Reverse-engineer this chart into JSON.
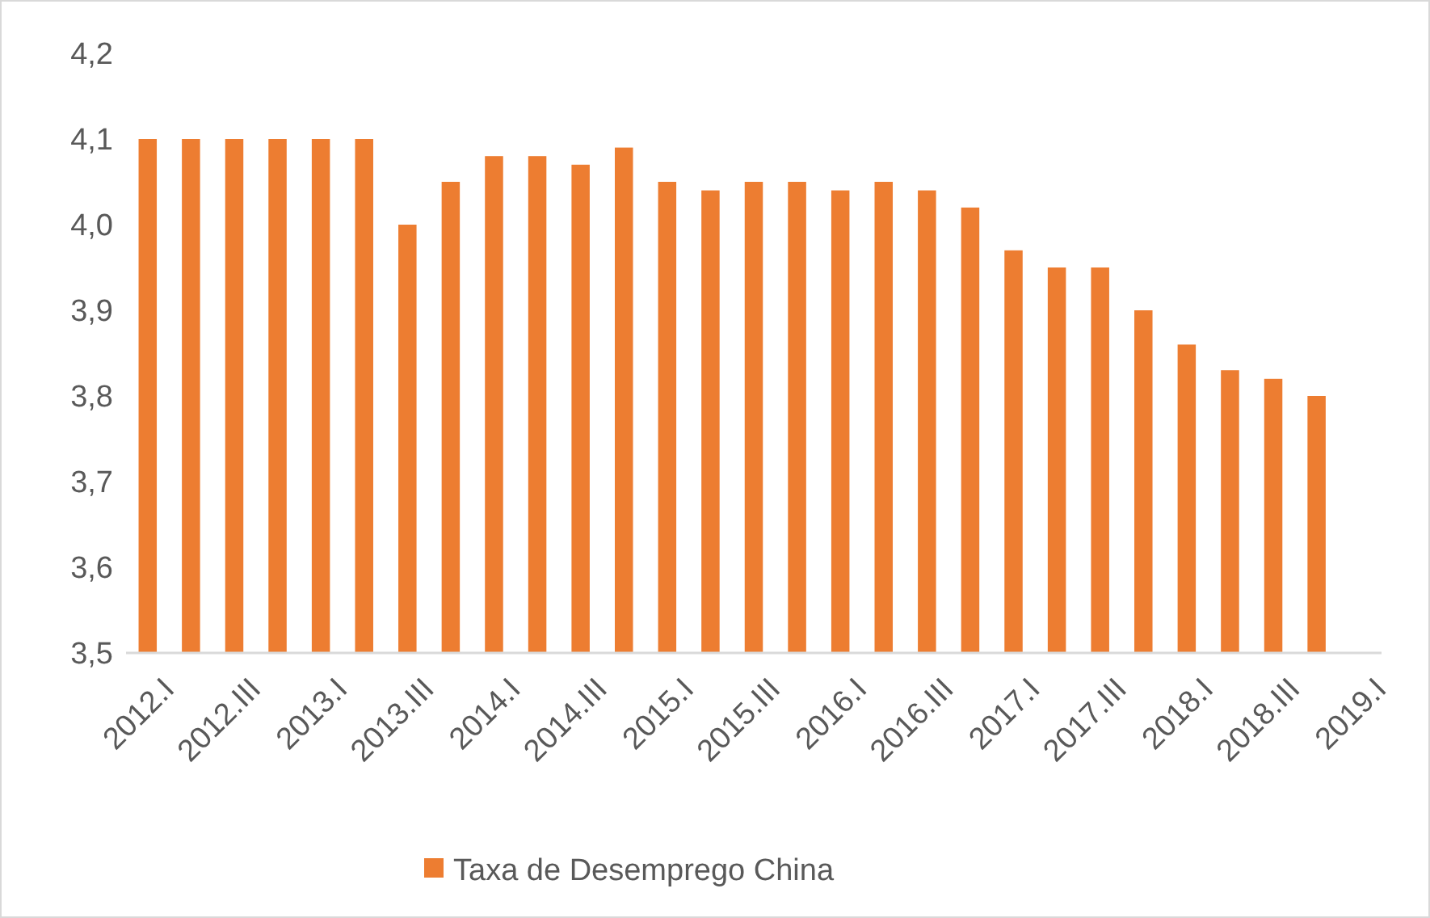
{
  "chart_data": {
    "type": "bar",
    "categories": [
      "2012.I",
      null,
      "2012.III",
      null,
      "2013.I",
      null,
      "2013.III",
      null,
      "2014.I",
      null,
      "2014.III",
      null,
      "2015.I",
      null,
      "2015.III",
      null,
      "2016.I",
      null,
      "2016.III",
      null,
      "2017.I",
      null,
      "2017.III",
      null,
      "2018.I",
      null,
      "2018.III",
      null,
      "2019.I"
    ],
    "series": [
      {
        "name": "Taxa de Desemprego China",
        "color": "#ed7d31",
        "values": [
          4.1,
          4.1,
          4.1,
          4.1,
          4.1,
          4.1,
          4.0,
          4.05,
          4.08,
          4.08,
          4.07,
          4.09,
          4.05,
          4.04,
          4.05,
          4.05,
          4.04,
          4.05,
          4.04,
          4.02,
          3.97,
          3.95,
          3.95,
          3.9,
          3.86,
          3.83,
          3.82,
          3.8,
          null
        ]
      }
    ],
    "ylim": [
      3.5,
      4.2
    ],
    "yticks": [
      {
        "value": 3.5,
        "label": "3,5"
      },
      {
        "value": 3.6,
        "label": "3,6"
      },
      {
        "value": 3.7,
        "label": "3,7"
      },
      {
        "value": 3.8,
        "label": "3,8"
      },
      {
        "value": 3.9,
        "label": "3,9"
      },
      {
        "value": 4.0,
        "label": "4,0"
      },
      {
        "value": 4.1,
        "label": "4,1"
      },
      {
        "value": 4.2,
        "label": "4,2"
      }
    ],
    "grid": false,
    "legend": "bottom"
  }
}
